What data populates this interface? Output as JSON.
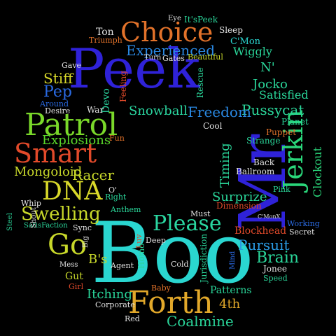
{
  "words": [
    {
      "id": "peek",
      "text": "Peek",
      "color": "#2f22d8"
    },
    {
      "id": "boo",
      "text": "Boo",
      "color": "#2ad6d0"
    },
    {
      "id": "mr",
      "text": "Mr",
      "color": "#2f22d8"
    },
    {
      "id": "choice",
      "text": "Choice",
      "color": "#e2722a"
    },
    {
      "id": "patrol",
      "text": "Patrol",
      "color": "#7ad82a"
    },
    {
      "id": "smart",
      "text": "Smart",
      "color": "#e24a2a"
    },
    {
      "id": "dna",
      "text": "DNA",
      "color": "#d8d82a"
    },
    {
      "id": "forth",
      "text": "Forth",
      "color": "#e2a82a"
    },
    {
      "id": "jerkin",
      "text": "Jerkin",
      "color": "#2ad67a"
    },
    {
      "id": "please",
      "text": "Please",
      "color": "#2ad6a0"
    },
    {
      "id": "go",
      "text": "Go",
      "color": "#c8d82a"
    },
    {
      "id": "swelling",
      "text": "Swelling",
      "color": "#c8d82a"
    },
    {
      "id": "experienced",
      "text": "Experienced",
      "color": "#2a88e2"
    },
    {
      "id": "pussycat",
      "text": "Pussycat",
      "color": "#2ad69a"
    },
    {
      "id": "freedom",
      "text": "Freedom",
      "color": "#2a88e2"
    },
    {
      "id": "snowball",
      "text": "Snowball",
      "color": "#2ad6a0"
    },
    {
      "id": "explosions",
      "text": "Explosions",
      "color": "#5ad82a"
    },
    {
      "id": "mongoloid",
      "text": "Mongoloid",
      "color": "#c8d82a"
    },
    {
      "id": "racer",
      "text": "Racer",
      "color": "#c8d82a"
    },
    {
      "id": "stiff",
      "text": "Stiff",
      "color": "#d8d82a"
    },
    {
      "id": "pep",
      "text": "Pep",
      "color": "#2a6ae2"
    },
    {
      "id": "pursuit",
      "text": "Pursuit",
      "color": "#2a9ae2"
    },
    {
      "id": "brain",
      "text": "Brain",
      "color": "#2ad69a"
    },
    {
      "id": "itching",
      "text": "Itching",
      "color": "#2ad69a"
    },
    {
      "id": "coalmine",
      "text": "Coalmine",
      "color": "#2ad69a"
    },
    {
      "id": "surprize",
      "text": "Surprize",
      "color": "#2ad69a"
    },
    {
      "id": "timing",
      "text": "Timing",
      "color": "#2ad69a"
    },
    {
      "id": "wiggly",
      "text": "Wiggly",
      "color": "#2ad69a"
    },
    {
      "id": "jocko",
      "text": "Jocko",
      "color": "#2ad69a"
    },
    {
      "id": "n",
      "text": "N'",
      "color": "#2ad69a"
    },
    {
      "id": "satisfied",
      "text": "Satisfied",
      "color": "#2ad69a"
    },
    {
      "id": "clockout",
      "text": "Clockout",
      "color": "#2ad67a"
    },
    {
      "id": "ton",
      "text": "Ton",
      "color": "#e2e2e2"
    },
    {
      "id": "triumph",
      "text": "Triumph",
      "color": "#e2722a"
    },
    {
      "id": "itspeek",
      "text": "It'sPeek",
      "color": "#2ad69a"
    },
    {
      "id": "sleep",
      "text": "Sleep",
      "color": "#e2e2e2"
    },
    {
      "id": "cmon",
      "text": "C'Mon",
      "color": "#2ad6d0"
    },
    {
      "id": "beautiful",
      "text": "Beautiful",
      "color": "#c8d82a"
    },
    {
      "id": "gates",
      "text": "Gates",
      "color": "#e2e2e2"
    },
    {
      "id": "gave",
      "text": "Gave",
      "color": "#e2e2e2"
    },
    {
      "id": "devo",
      "text": "Devo",
      "color": "#2ad6a0"
    },
    {
      "id": "war",
      "text": "War",
      "color": "#e2e2e2"
    },
    {
      "id": "feeling",
      "text": "Feeling",
      "color": "#e24a2a"
    },
    {
      "id": "desire",
      "text": "Desire",
      "color": "#e2e2e2"
    },
    {
      "id": "around",
      "text": "Around",
      "color": "#2a6ae2"
    },
    {
      "id": "cool",
      "text": "Cool",
      "color": "#e2e2e2"
    },
    {
      "id": "rescue",
      "text": "Rescue",
      "color": "#2ad69a"
    },
    {
      "id": "planet",
      "text": "Planet",
      "color": "#2ad69a"
    },
    {
      "id": "puppet",
      "text": "Puppet",
      "color": "#e2722a"
    },
    {
      "id": "strange",
      "text": "Strange",
      "color": "#2ad69a"
    },
    {
      "id": "back",
      "text": "Back",
      "color": "#e2e2e2"
    },
    {
      "id": "ballroom",
      "text": "Ballroom",
      "color": "#e2e2e2"
    },
    {
      "id": "pink",
      "text": "Pink",
      "color": "#2ad69a"
    },
    {
      "id": "o",
      "text": "O'",
      "color": "#e2e2e2"
    },
    {
      "id": "right",
      "text": "Right",
      "color": "#2ad69a"
    },
    {
      "id": "whip",
      "text": "Whip",
      "color": "#e2e2e2"
    },
    {
      "id": "anthem",
      "text": "Anthem",
      "color": "#2ad69a"
    },
    {
      "id": "satisfaction",
      "text": "SatisFaction",
      "color": "#2ad69a"
    },
    {
      "id": "shout",
      "text": "Shout",
      "color": "#e2e2e2"
    },
    {
      "id": "sync",
      "text": "Sync",
      "color": "#e2e2e2"
    },
    {
      "id": "must",
      "text": "Must",
      "color": "#e2e2e2"
    },
    {
      "id": "blockhead",
      "text": "Blockhead",
      "color": "#e24a2a"
    },
    {
      "id": "working",
      "text": "Working",
      "color": "#2a6ae2"
    },
    {
      "id": "secret",
      "text": "Secret",
      "color": "#e2e2e2"
    },
    {
      "id": "deep",
      "text": "Deep",
      "color": "#e2e2e2"
    },
    {
      "id": "bs",
      "text": "B's",
      "color": "#c8d82a"
    },
    {
      "id": "big",
      "text": "Big",
      "color": "#e2e2e2"
    },
    {
      "id": "luv",
      "text": "Luv",
      "color": "#e24a2a"
    },
    {
      "id": "mess",
      "text": "Mess",
      "color": "#e2e2e2"
    },
    {
      "id": "agent",
      "text": "Agent",
      "color": "#e2e2e2"
    },
    {
      "id": "gut",
      "text": "Gut",
      "color": "#c8d82a"
    },
    {
      "id": "girl",
      "text": "Girl",
      "color": "#e24a2a"
    },
    {
      "id": "homo",
      "text": "Homo",
      "color": "#2ad69a"
    },
    {
      "id": "cold",
      "text": "Cold",
      "color": "#e2e2e2"
    },
    {
      "id": "baby",
      "text": "Baby",
      "color": "#e2722a"
    },
    {
      "id": "jurisdiction",
      "text": "Jurisdiction",
      "color": "#2ad69a"
    },
    {
      "id": "mind",
      "text": "Mind",
      "color": "#2a6ae2"
    },
    {
      "id": "jonee",
      "text": "Jonee",
      "color": "#e2e2e2"
    },
    {
      "id": "speed",
      "text": "Speed",
      "color": "#2ad69a"
    },
    {
      "id": "patterns",
      "text": "Patterns",
      "color": "#2ad69a"
    },
    {
      "id": "dimension",
      "text": "Dimension",
      "color": "#e24a2a"
    },
    {
      "id": "corporate",
      "text": "Corporate",
      "color": "#e2e2e2"
    },
    {
      "id": "fourth",
      "text": "4th",
      "color": "#e2a82a"
    },
    {
      "id": "red",
      "text": "Red",
      "color": "#e2e2e2"
    },
    {
      "id": "fun",
      "text": "Fun",
      "color": "#e2722a"
    },
    {
      "id": "cmonx",
      "text": "C'MonX",
      "color": "#e2e2e2"
    },
    {
      "id": "steel",
      "text": "Steel",
      "color": "#2ad69a"
    },
    {
      "id": "turn",
      "text": "Turn",
      "color": "#e2e2e2"
    },
    {
      "id": "eye",
      "text": "Eye",
      "color": "#e2e2e2"
    }
  ]
}
